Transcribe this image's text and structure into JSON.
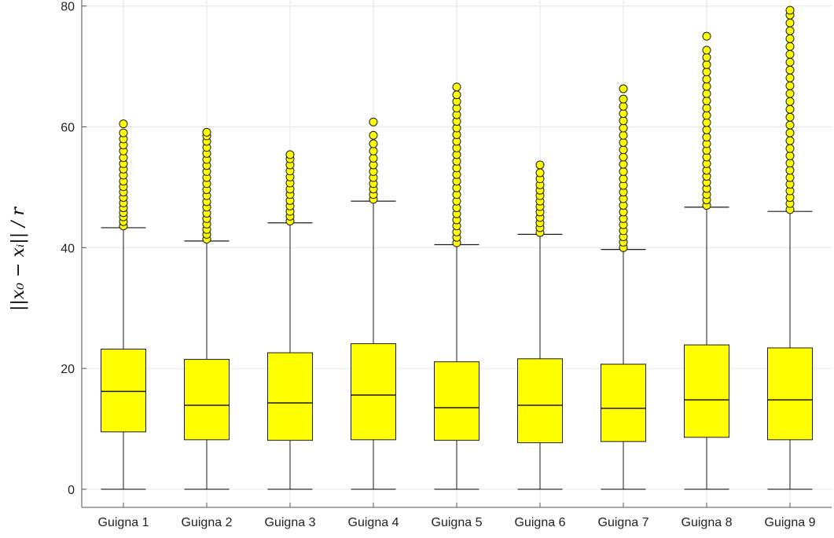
{
  "chart_data": {
    "type": "box",
    "title": "",
    "xlabel": "",
    "ylabel": "||x₀ − xᵢ|| / r",
    "ylim": [
      -3,
      81
    ],
    "yticks": [
      0,
      20,
      40,
      60,
      80
    ],
    "grid": true,
    "legend": "none",
    "categories": [
      "Guigna 1",
      "Guigna 2",
      "Guigna 3",
      "Guigna 4",
      "Guigna 5",
      "Guigna 6",
      "Guigna 7",
      "Guigna 8",
      "Guigna 9"
    ],
    "boxes": [
      {
        "min": 0,
        "q1": 9.5,
        "median": 16.2,
        "q3": 23.2,
        "whisker_high": 43.3,
        "outliers": [
          43.6,
          44.3,
          45.1,
          45.8,
          46.6,
          47.4,
          48.3,
          49.2,
          50.1,
          51.0,
          52.0,
          53.0,
          53.9,
          54.9,
          56.0,
          57.0,
          58.0,
          59.0,
          60.5
        ]
      },
      {
        "min": 0,
        "q1": 8.2,
        "median": 13.9,
        "q3": 21.5,
        "whisker_high": 41.1,
        "outliers": [
          41.4,
          42.2,
          43.0,
          43.9,
          44.8,
          45.7,
          46.7,
          47.6,
          48.6,
          49.6,
          50.6,
          51.6,
          52.6,
          53.6,
          54.6,
          55.6,
          56.6,
          57.6,
          58.5,
          59.1
        ]
      },
      {
        "min": 0,
        "q1": 8.1,
        "median": 14.3,
        "q3": 22.6,
        "whisker_high": 44.1,
        "outliers": [
          44.4,
          45.2,
          46.0,
          46.9,
          47.8,
          48.8,
          49.7,
          50.7,
          51.7,
          52.7,
          53.7,
          54.7,
          55.4
        ]
      },
      {
        "min": 0,
        "q1": 8.2,
        "median": 15.6,
        "q3": 24.1,
        "whisker_high": 47.7,
        "outliers": [
          48.0,
          48.8,
          49.7,
          50.6,
          51.6,
          52.6,
          53.7,
          54.8,
          56.0,
          57.2,
          58.6,
          60.8
        ]
      },
      {
        "min": 0,
        "q1": 8.1,
        "median": 13.5,
        "q3": 21.1,
        "whisker_high": 40.5,
        "outliers": [
          40.8,
          41.7,
          42.6,
          43.6,
          44.6,
          45.6,
          46.6,
          47.7,
          48.8,
          49.9,
          51.0,
          52.1,
          53.2,
          54.3,
          55.4,
          56.5,
          57.6,
          58.7,
          59.8,
          60.9,
          62.0,
          63.1,
          64.2,
          65.3,
          66.6
        ]
      },
      {
        "min": 0,
        "q1": 7.7,
        "median": 13.9,
        "q3": 21.6,
        "whisker_high": 42.2,
        "outliers": [
          42.5,
          43.3,
          44.1,
          45.0,
          45.9,
          46.8,
          47.7,
          48.6,
          49.5,
          50.4,
          51.4,
          52.4,
          53.7
        ]
      },
      {
        "min": 0,
        "q1": 7.9,
        "median": 13.4,
        "q3": 20.7,
        "whisker_high": 39.7,
        "outliers": [
          40.0,
          40.9,
          41.8,
          42.8,
          43.8,
          44.8,
          45.9,
          47.0,
          48.1,
          49.2,
          50.3,
          51.4,
          52.6,
          53.8,
          55.0,
          56.2,
          57.4,
          58.6,
          59.8,
          61.0,
          62.2,
          63.4,
          64.6,
          66.3
        ]
      },
      {
        "min": 0,
        "q1": 8.6,
        "median": 14.8,
        "q3": 23.9,
        "whisker_high": 46.7,
        "outliers": [
          47.0,
          47.9,
          48.8,
          49.8,
          50.8,
          51.8,
          52.8,
          53.9,
          55.0,
          56.1,
          57.2,
          58.3,
          59.5,
          60.7,
          61.9,
          63.1,
          64.3,
          65.5,
          66.7,
          67.9,
          69.1,
          70.3,
          71.5,
          72.7,
          75.0
        ]
      },
      {
        "min": 0,
        "q1": 8.2,
        "median": 14.8,
        "q3": 23.4,
        "whisker_high": 46.0,
        "outliers": [
          46.3,
          47.3,
          48.3,
          49.4,
          50.5,
          51.6,
          52.8,
          54.0,
          55.2,
          56.4,
          57.7,
          59.0,
          60.3,
          61.6,
          62.9,
          64.2,
          65.5,
          66.8,
          68.1,
          69.4,
          70.7,
          72.0,
          73.3,
          74.6,
          75.9,
          77.2,
          78.5,
          79.3
        ]
      }
    ],
    "colors": {
      "box_fill": "#ffff00",
      "box_edge": "#1a1a1a",
      "outlier_fill": "#ffff00",
      "outlier_edge": "#1a1a1a",
      "grid": "#e6e6e6",
      "axis": "#555555"
    }
  }
}
